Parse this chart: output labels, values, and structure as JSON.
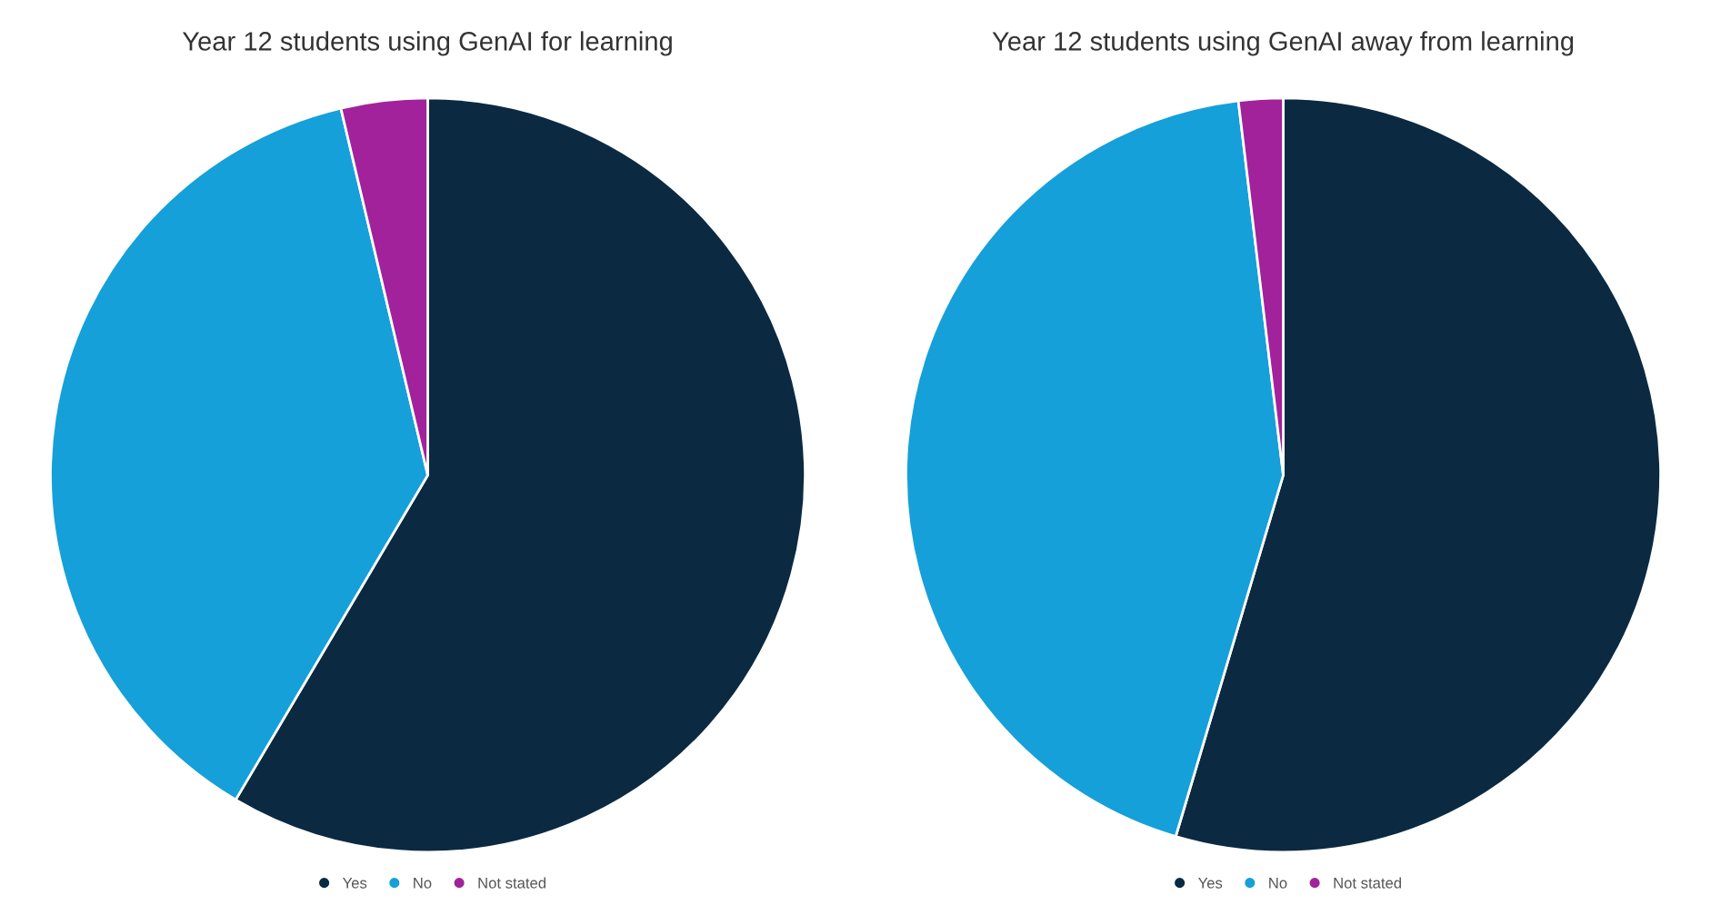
{
  "chart_data": [
    {
      "type": "pie",
      "title": "Year 12 students using GenAI for learning",
      "categories": [
        "Yes",
        "No",
        "Not stated"
      ],
      "values": [
        58.5,
        37.8,
        3.7
      ],
      "colors": [
        "#0b2a42",
        "#15a0d9",
        "#a2229b"
      ],
      "legend": "bottom"
    },
    {
      "type": "pie",
      "title": "Year 12 students using GenAI away from learning",
      "categories": [
        "Yes",
        "No",
        "Not stated"
      ],
      "values": [
        54.6,
        43.5,
        1.9
      ],
      "colors": [
        "#0b2a42",
        "#15a0d9",
        "#a2229b"
      ],
      "legend": "bottom"
    }
  ]
}
